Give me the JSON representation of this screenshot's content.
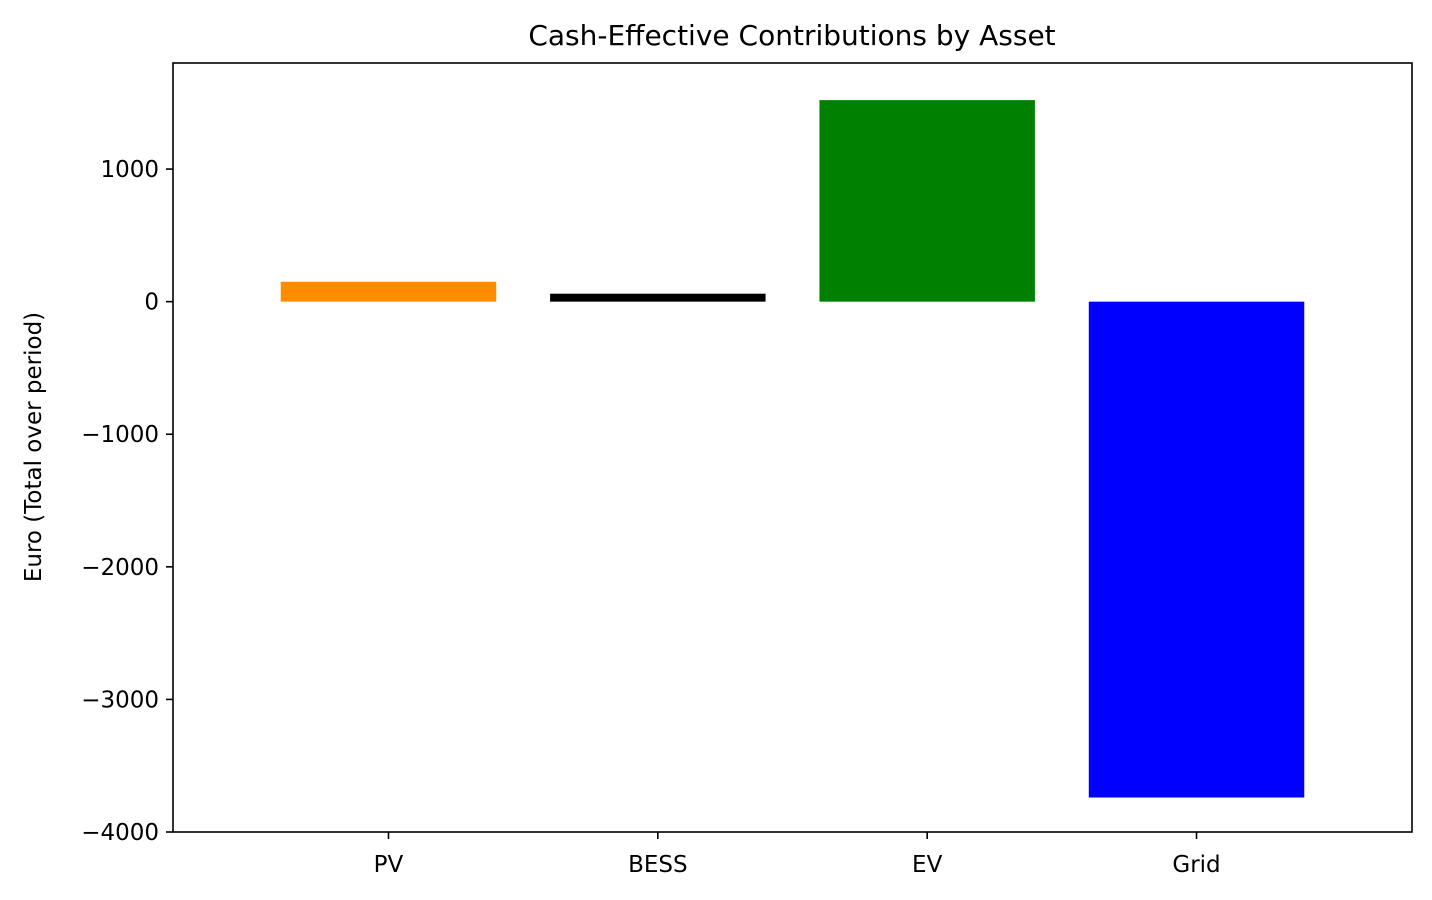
{
  "chart_data": {
    "type": "bar",
    "title": "Cash-Effective Contributions by Asset",
    "xlabel": "",
    "ylabel": "Euro (Total over period)",
    "categories": [
      "PV",
      "BESS",
      "EV",
      "Grid"
    ],
    "values": [
      150,
      60,
      1520,
      -3740
    ],
    "colors": [
      "#ff8c00",
      "#000000",
      "#008000",
      "#0000ff"
    ],
    "ylim": [
      -4000,
      1800
    ],
    "yticks": [
      -4000,
      -3000,
      -2000,
      -1000,
      0,
      1000
    ],
    "ytick_labels": [
      "−4000",
      "−3000",
      "−2000",
      "−1000",
      "0",
      "1000"
    ],
    "grid": false,
    "legend": "none"
  }
}
